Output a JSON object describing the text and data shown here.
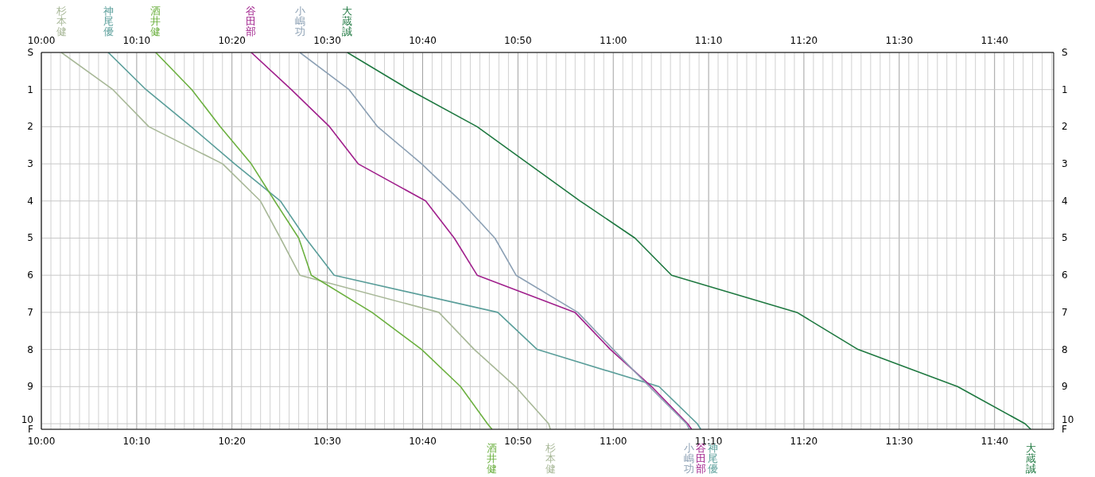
{
  "chart_data": {
    "type": "line",
    "marker": "none",
    "grid": true,
    "xlim": [
      10,
      11.77
    ],
    "xticks": [
      {
        "value": 10,
        "label": "10:00"
      },
      {
        "value": 10.0167,
        "label": null
      },
      {
        "value": 10.0333,
        "label": null
      },
      {
        "value": 10.05,
        "label": null
      },
      {
        "value": 10.0667,
        "label": null
      },
      {
        "value": 10.0833,
        "label": null
      },
      {
        "value": 10.1,
        "label": null
      },
      {
        "value": 10.1167,
        "label": null
      },
      {
        "value": 10.1333,
        "label": null
      },
      {
        "value": 10.15,
        "label": null
      },
      {
        "value": 10.1667,
        "label": "10:10"
      },
      {
        "value": 10.1833,
        "label": null
      },
      {
        "value": 10.2,
        "label": null
      },
      {
        "value": 10.2167,
        "label": null
      },
      {
        "value": 10.2333,
        "label": null
      },
      {
        "value": 10.25,
        "label": null
      },
      {
        "value": 10.2667,
        "label": null
      },
      {
        "value": 10.2833,
        "label": null
      },
      {
        "value": 10.3,
        "label": null
      },
      {
        "value": 10.3167,
        "label": null
      },
      {
        "value": 10.3333,
        "label": "10:20"
      },
      {
        "value": 10.35,
        "label": null
      },
      {
        "value": 10.3667,
        "label": null
      },
      {
        "value": 10.3833,
        "label": null
      },
      {
        "value": 10.4,
        "label": null
      },
      {
        "value": 10.4167,
        "label": null
      },
      {
        "value": 10.4333,
        "label": null
      },
      {
        "value": 10.45,
        "label": null
      },
      {
        "value": 10.4667,
        "label": null
      },
      {
        "value": 10.4833,
        "label": null
      },
      {
        "value": 10.5,
        "label": "10:30"
      },
      {
        "value": 10.5167,
        "label": null
      },
      {
        "value": 10.5333,
        "label": null
      },
      {
        "value": 10.55,
        "label": null
      },
      {
        "value": 10.5667,
        "label": null
      },
      {
        "value": 10.5833,
        "label": null
      },
      {
        "value": 10.6,
        "label": null
      },
      {
        "value": 10.6167,
        "label": null
      },
      {
        "value": 10.6333,
        "label": null
      },
      {
        "value": 10.65,
        "label": null
      },
      {
        "value": 10.6667,
        "label": "10:40"
      },
      {
        "value": 10.6833,
        "label": null
      },
      {
        "value": 10.7,
        "label": null
      },
      {
        "value": 10.7167,
        "label": null
      },
      {
        "value": 10.7333,
        "label": null
      },
      {
        "value": 10.75,
        "label": null
      },
      {
        "value": 10.7667,
        "label": null
      },
      {
        "value": 10.7833,
        "label": null
      },
      {
        "value": 10.8,
        "label": null
      },
      {
        "value": 10.8167,
        "label": null
      },
      {
        "value": 10.8333,
        "label": "10:50"
      },
      {
        "value": 10.85,
        "label": null
      },
      {
        "value": 10.8667,
        "label": null
      },
      {
        "value": 10.8833,
        "label": null
      },
      {
        "value": 10.9,
        "label": null
      },
      {
        "value": 10.9167,
        "label": null
      },
      {
        "value": 10.9333,
        "label": null
      },
      {
        "value": 10.95,
        "label": null
      },
      {
        "value": 10.9667,
        "label": null
      },
      {
        "value": 10.9833,
        "label": null
      },
      {
        "value": 11,
        "label": "11:00"
      },
      {
        "value": 11.0167,
        "label": null
      },
      {
        "value": 11.0333,
        "label": null
      },
      {
        "value": 11.05,
        "label": null
      },
      {
        "value": 11.0667,
        "label": null
      },
      {
        "value": 11.0833,
        "label": null
      },
      {
        "value": 11.1,
        "label": null
      },
      {
        "value": 11.1167,
        "label": null
      },
      {
        "value": 11.1333,
        "label": null
      },
      {
        "value": 11.15,
        "label": null
      },
      {
        "value": 11.1667,
        "label": "11:10"
      },
      {
        "value": 11.1833,
        "label": null
      },
      {
        "value": 11.2,
        "label": null
      },
      {
        "value": 11.2167,
        "label": null
      },
      {
        "value": 11.2333,
        "label": null
      },
      {
        "value": 11.25,
        "label": null
      },
      {
        "value": 11.2667,
        "label": null
      },
      {
        "value": 11.2833,
        "label": null
      },
      {
        "value": 11.3,
        "label": null
      },
      {
        "value": 11.3167,
        "label": null
      },
      {
        "value": 11.3333,
        "label": "11:20"
      },
      {
        "value": 11.35,
        "label": null
      },
      {
        "value": 11.3667,
        "label": null
      },
      {
        "value": 11.3833,
        "label": null
      },
      {
        "value": 11.4,
        "label": null
      },
      {
        "value": 11.4167,
        "label": null
      },
      {
        "value": 11.4333,
        "label": null
      },
      {
        "value": 11.45,
        "label": null
      },
      {
        "value": 11.4667,
        "label": null
      },
      {
        "value": 11.4833,
        "label": null
      },
      {
        "value": 11.5,
        "label": "11:30"
      },
      {
        "value": 11.5167,
        "label": null
      },
      {
        "value": 11.5333,
        "label": null
      },
      {
        "value": 11.55,
        "label": null
      },
      {
        "value": 11.5667,
        "label": null
      },
      {
        "value": 11.5833,
        "label": null
      },
      {
        "value": 11.6,
        "label": null
      },
      {
        "value": 11.6167,
        "label": null
      },
      {
        "value": 11.6333,
        "label": null
      },
      {
        "value": 11.65,
        "label": null
      },
      {
        "value": 11.6667,
        "label": "11:40"
      },
      {
        "value": 11.6833,
        "label": null
      },
      {
        "value": 11.7,
        "label": null
      },
      {
        "value": 11.7167,
        "label": null
      },
      {
        "value": 11.7333,
        "label": null
      },
      {
        "value": 11.75,
        "label": null
      },
      {
        "value": 11.7667,
        "label": null
      }
    ],
    "x2lim": [
      10,
      11.77
    ],
    "x2ticks": [
      {
        "value": 10,
        "label": "10:00"
      },
      {
        "value": 10.1667,
        "label": "10:10"
      },
      {
        "value": 10.3333,
        "label": "10:20"
      },
      {
        "value": 10.5,
        "label": "10:30"
      },
      {
        "value": 10.6667,
        "label": "10:40"
      },
      {
        "value": 10.8333,
        "label": "10:50"
      },
      {
        "value": 11,
        "label": "11:00"
      },
      {
        "value": 11.1667,
        "label": "11:10"
      },
      {
        "value": 11.3333,
        "label": "11:20"
      },
      {
        "value": 11.5,
        "label": "11:30"
      },
      {
        "value": 11.6667,
        "label": "11:40"
      }
    ],
    "ylim": [
      10.15,
      0
    ],
    "yticks": [
      {
        "value": 0,
        "label": "S"
      },
      1,
      2,
      3,
      4,
      5,
      6,
      7,
      8,
      9,
      10,
      {
        "value": 10.15,
        "label": "F"
      }
    ],
    "y2lim": [
      10.15,
      0
    ],
    "y2ticks": [
      {
        "value": 0,
        "label": "S"
      },
      1,
      2,
      3,
      4,
      5,
      6,
      7,
      8,
      9,
      10,
      {
        "value": 10.15,
        "label": "F"
      }
    ],
    "series": [
      {
        "name": "杉本健",
        "color": "#a8b898",
        "x": [
          10.035,
          10.125,
          10.188,
          10.317,
          10.383,
          10.418,
          10.452,
          10.695,
          10.757,
          10.829,
          10.887,
          10.89
        ],
        "values": [
          0,
          1,
          2,
          3,
          4,
          5,
          6,
          7,
          8,
          9,
          10,
          10.15
        ]
      },
      {
        "name": "神尾優",
        "color": "#5a9e9a",
        "x": [
          10.117,
          10.183,
          10.262,
          10.338,
          10.418,
          10.462,
          10.512,
          10.798,
          10.867,
          11.08,
          11.147,
          11.153
        ],
        "values": [
          0,
          1,
          2,
          3,
          4,
          5,
          6,
          7,
          8,
          9,
          10,
          10.15
        ]
      },
      {
        "name": "酒井健",
        "color": "#6cb040",
        "x": [
          10.2,
          10.263,
          10.313,
          10.367,
          10.408,
          10.45,
          10.472,
          10.578,
          10.665,
          10.733,
          10.78,
          10.788
        ],
        "values": [
          0,
          1,
          2,
          3,
          4,
          5,
          6,
          7,
          8,
          9,
          10,
          10.15
        ]
      },
      {
        "name": "谷田部",
        "color": "#a0208c",
        "x": [
          10.367,
          10.437,
          10.504,
          10.554,
          10.672,
          10.722,
          10.762,
          10.933,
          10.995,
          11.067,
          11.13,
          11.137
        ],
        "values": [
          0,
          1,
          2,
          3,
          4,
          5,
          6,
          7,
          8,
          9,
          10,
          10.15
        ]
      },
      {
        "name": "小嶋功",
        "color": "#8ca0b4",
        "x": [
          10.452,
          10.538,
          10.588,
          10.665,
          10.733,
          10.793,
          10.83,
          10.938,
          11.0,
          11.063,
          11.128,
          11.133
        ],
        "values": [
          0,
          1,
          2,
          3,
          4,
          5,
          6,
          7,
          8,
          9,
          10,
          10.15
        ]
      },
      {
        "name": "大蔵誠",
        "color": "#1e7840",
        "x": [
          10.535,
          10.643,
          10.762,
          10.852,
          10.942,
          11.038,
          11.102,
          11.321,
          11.428,
          11.602,
          11.72,
          11.73
        ],
        "values": [
          0,
          1,
          2,
          3,
          4,
          5,
          6,
          7,
          8,
          9,
          10,
          10.15
        ]
      }
    ]
  }
}
